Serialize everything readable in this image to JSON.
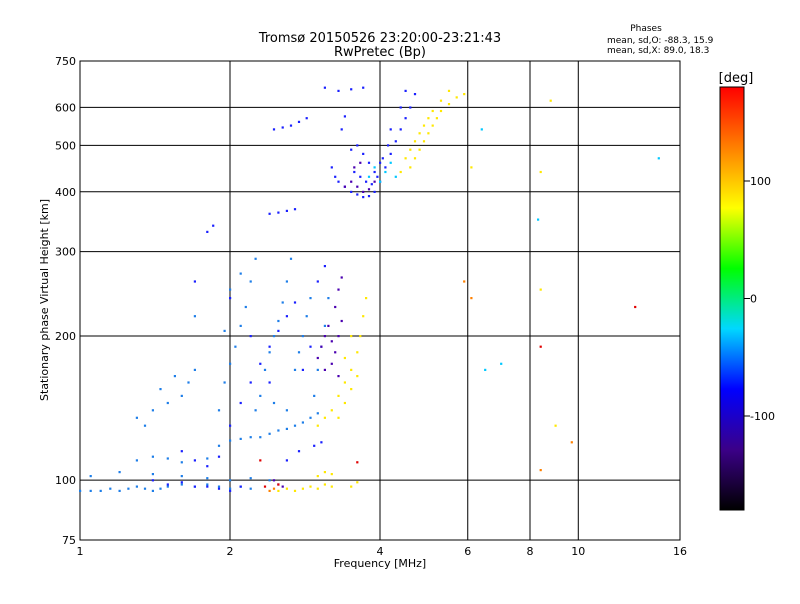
{
  "chart_data": {
    "type": "scatter",
    "title": "Tromsø 20150526 23:20:00-23:21:43",
    "subtitle": "RwPretec (Bp)",
    "xlabel": "Frequency [MHz]",
    "ylabel": "Stationary phase Virtual Height [km]",
    "x_scale": "log",
    "y_scale": "log",
    "xlim": [
      1,
      16
    ],
    "ylim": [
      75,
      750
    ],
    "x_ticks": [
      1,
      2,
      4,
      6,
      8,
      10,
      16
    ],
    "x_tick_labels": [
      "1",
      "2",
      "4",
      "6",
      "8",
      "10",
      "16"
    ],
    "y_ticks": [
      75,
      100,
      200,
      300,
      400,
      500,
      600,
      750
    ],
    "y_tick_labels": [
      "75",
      "100",
      "200",
      "300",
      "400",
      "500",
      "600",
      "750"
    ],
    "grid": true,
    "phase_stats": {
      "title": "Phases",
      "o_line": "mean, sd,O: -88.3, 15.9",
      "x_line": "mean, sd,X:  89.0, 18.3"
    },
    "colorbar": {
      "label": "[deg]",
      "ticks": [
        100,
        0,
        -100
      ],
      "tick_labels": [
        "100",
        "0",
        "-100"
      ],
      "range": [
        -180,
        180
      ],
      "colors": [
        "#000000",
        "#3b0088",
        "#0000ff",
        "#00d8ff",
        "#00ff00",
        "#ffff00",
        "#ff8000",
        "#ff0000"
      ]
    },
    "point_colors": {
      "violet": "#4a00b0",
      "blue": "#1a20ff",
      "light_blue": "#1e7ee8",
      "cyan": "#00c8ff",
      "yellow": "#ffe800",
      "orange": "#ff8000",
      "red": "#e00000"
    },
    "series": [
      {
        "color_key": "light_blue",
        "points": [
          [
            1.0,
            95
          ],
          [
            1.05,
            95
          ],
          [
            1.1,
            95
          ],
          [
            1.15,
            96
          ],
          [
            1.2,
            95
          ],
          [
            1.25,
            96
          ],
          [
            1.3,
            97
          ],
          [
            1.35,
            96
          ],
          [
            1.4,
            95
          ],
          [
            1.45,
            96
          ],
          [
            1.5,
            97
          ],
          [
            1.6,
            98
          ],
          [
            1.7,
            97
          ],
          [
            1.8,
            98
          ],
          [
            1.9,
            97
          ],
          [
            2.0,
            96
          ],
          [
            2.1,
            97
          ],
          [
            2.2,
            96
          ],
          [
            1.05,
            102
          ],
          [
            1.2,
            104
          ],
          [
            1.4,
            103
          ],
          [
            1.6,
            102
          ],
          [
            1.8,
            101
          ],
          [
            2.0,
            100
          ],
          [
            2.2,
            101
          ],
          [
            2.4,
            100
          ],
          [
            1.3,
            110
          ],
          [
            1.4,
            112
          ],
          [
            1.5,
            111
          ],
          [
            1.6,
            109
          ],
          [
            1.8,
            111
          ],
          [
            1.9,
            118
          ],
          [
            2.0,
            121
          ],
          [
            2.1,
            122
          ],
          [
            2.2,
            123
          ],
          [
            2.3,
            123
          ],
          [
            2.4,
            125
          ],
          [
            2.5,
            127
          ],
          [
            2.6,
            128
          ],
          [
            2.7,
            130
          ],
          [
            2.8,
            132
          ],
          [
            2.9,
            135
          ],
          [
            3.0,
            138
          ],
          [
            1.3,
            135
          ],
          [
            1.4,
            140
          ],
          [
            1.5,
            145
          ],
          [
            1.6,
            150
          ],
          [
            1.65,
            160
          ],
          [
            1.7,
            170
          ],
          [
            1.55,
            165
          ],
          [
            1.45,
            155
          ],
          [
            1.35,
            130
          ],
          [
            1.9,
            140
          ],
          [
            1.95,
            160
          ],
          [
            2.0,
            175
          ],
          [
            2.05,
            190
          ],
          [
            2.1,
            210
          ],
          [
            2.15,
            230
          ],
          [
            2.2,
            260
          ],
          [
            2.25,
            290
          ],
          [
            2.3,
            150
          ],
          [
            2.35,
            170
          ],
          [
            2.4,
            185
          ],
          [
            2.45,
            200
          ],
          [
            2.5,
            215
          ],
          [
            2.55,
            235
          ],
          [
            2.6,
            260
          ],
          [
            2.65,
            290
          ],
          [
            2.7,
            170
          ],
          [
            2.75,
            185
          ],
          [
            2.8,
            200
          ],
          [
            2.85,
            220
          ],
          [
            2.9,
            240
          ],
          [
            2.95,
            150
          ],
          [
            3.0,
            170
          ],
          [
            3.05,
            190
          ],
          [
            3.1,
            210
          ],
          [
            3.15,
            240
          ],
          [
            1.7,
            220
          ],
          [
            2.0,
            250
          ],
          [
            2.1,
            270
          ],
          [
            1.95,
            205
          ],
          [
            2.25,
            140
          ],
          [
            2.45,
            145
          ],
          [
            2.6,
            140
          ]
        ]
      },
      {
        "color_key": "blue",
        "points": [
          [
            1.4,
            100
          ],
          [
            1.5,
            98
          ],
          [
            1.6,
            99
          ],
          [
            1.7,
            97
          ],
          [
            1.8,
            97
          ],
          [
            1.9,
            96
          ],
          [
            2.0,
            95
          ],
          [
            2.1,
            97
          ],
          [
            1.6,
            115
          ],
          [
            1.7,
            110
          ],
          [
            1.8,
            107
          ],
          [
            1.9,
            112
          ],
          [
            2.0,
            130
          ],
          [
            2.1,
            145
          ],
          [
            2.2,
            160
          ],
          [
            2.3,
            175
          ],
          [
            2.4,
            190
          ],
          [
            2.5,
            205
          ],
          [
            2.6,
            220
          ],
          [
            2.7,
            235
          ],
          [
            1.7,
            260
          ],
          [
            2.0,
            240
          ],
          [
            2.2,
            200
          ],
          [
            2.4,
            160
          ],
          [
            2.8,
            170
          ],
          [
            2.9,
            190
          ],
          [
            3.0,
            260
          ],
          [
            3.1,
            280
          ],
          [
            1.8,
            330
          ],
          [
            1.85,
            340
          ],
          [
            2.4,
            360
          ],
          [
            2.5,
            362
          ],
          [
            2.6,
            365
          ],
          [
            2.7,
            368
          ],
          [
            2.45,
            540
          ],
          [
            2.55,
            545
          ],
          [
            2.65,
            550
          ],
          [
            2.75,
            560
          ],
          [
            2.85,
            570
          ],
          [
            3.1,
            660
          ],
          [
            3.3,
            650
          ],
          [
            3.5,
            655
          ],
          [
            3.7,
            660
          ],
          [
            3.4,
            575
          ],
          [
            3.35,
            540
          ],
          [
            3.2,
            450
          ],
          [
            3.25,
            430
          ],
          [
            3.3,
            420
          ],
          [
            3.4,
            410
          ],
          [
            3.5,
            400
          ],
          [
            3.6,
            395
          ],
          [
            3.7,
            390
          ],
          [
            3.8,
            392
          ],
          [
            3.9,
            400
          ],
          [
            4.0,
            420
          ],
          [
            4.1,
            450
          ],
          [
            4.2,
            480
          ],
          [
            4.3,
            510
          ],
          [
            4.4,
            540
          ],
          [
            4.5,
            570
          ],
          [
            4.6,
            600
          ],
          [
            4.7,
            640
          ],
          [
            3.5,
            490
          ],
          [
            3.6,
            500
          ],
          [
            3.7,
            480
          ],
          [
            3.8,
            460
          ],
          [
            3.9,
            440
          ],
          [
            4.0,
            460
          ],
          [
            4.2,
            540
          ],
          [
            4.4,
            600
          ],
          [
            4.5,
            650
          ],
          [
            3.55,
            440
          ],
          [
            3.65,
            430
          ],
          [
            3.75,
            420
          ],
          [
            3.85,
            415
          ],
          [
            3.95,
            430
          ],
          [
            4.05,
            470
          ],
          [
            4.15,
            500
          ],
          [
            2.6,
            110
          ],
          [
            2.75,
            115
          ],
          [
            2.95,
            118
          ],
          [
            3.05,
            120
          ]
        ]
      },
      {
        "color_key": "violet",
        "points": [
          [
            3.0,
            180
          ],
          [
            3.05,
            190
          ],
          [
            3.1,
            200
          ],
          [
            3.15,
            210
          ],
          [
            3.2,
            195
          ],
          [
            3.25,
            185
          ],
          [
            3.3,
            200
          ],
          [
            3.35,
            215
          ],
          [
            3.1,
            170
          ],
          [
            3.2,
            175
          ],
          [
            3.3,
            165
          ],
          [
            3.25,
            230
          ],
          [
            3.3,
            250
          ],
          [
            3.35,
            265
          ],
          [
            3.4,
            410
          ],
          [
            3.5,
            420
          ],
          [
            3.6,
            410
          ],
          [
            3.7,
            400
          ],
          [
            3.8,
            405
          ],
          [
            3.9,
            420
          ],
          [
            3.55,
            450
          ],
          [
            3.65,
            460
          ],
          [
            2.45,
            100
          ],
          [
            2.5,
            98
          ],
          [
            2.55,
            97
          ]
        ]
      },
      {
        "color_key": "cyan",
        "points": [
          [
            3.8,
            430
          ],
          [
            3.9,
            450
          ],
          [
            4.0,
            420
          ],
          [
            4.1,
            440
          ],
          [
            4.2,
            460
          ],
          [
            4.3,
            430
          ],
          [
            6.4,
            540
          ],
          [
            7.0,
            175
          ],
          [
            6.5,
            170
          ],
          [
            14.5,
            470
          ],
          [
            8.3,
            350
          ]
        ]
      },
      {
        "color_key": "yellow",
        "points": [
          [
            2.5,
            95
          ],
          [
            2.6,
            96
          ],
          [
            2.7,
            95
          ],
          [
            2.8,
            96
          ],
          [
            2.9,
            97
          ],
          [
            3.0,
            96
          ],
          [
            3.1,
            98
          ],
          [
            3.2,
            97
          ],
          [
            3.0,
            102
          ],
          [
            3.1,
            104
          ],
          [
            3.2,
            103
          ],
          [
            3.5,
            97
          ],
          [
            3.6,
            99
          ],
          [
            3.0,
            130
          ],
          [
            3.1,
            135
          ],
          [
            3.2,
            140
          ],
          [
            3.3,
            150
          ],
          [
            3.4,
            160
          ],
          [
            3.5,
            170
          ],
          [
            3.6,
            185
          ],
          [
            3.65,
            200
          ],
          [
            3.7,
            220
          ],
          [
            3.75,
            240
          ],
          [
            3.3,
            135
          ],
          [
            3.4,
            145
          ],
          [
            3.5,
            155
          ],
          [
            3.6,
            165
          ],
          [
            3.4,
            180
          ],
          [
            3.5,
            200
          ],
          [
            4.4,
            440
          ],
          [
            4.6,
            450
          ],
          [
            4.7,
            470
          ],
          [
            4.8,
            490
          ],
          [
            4.9,
            510
          ],
          [
            5.0,
            530
          ],
          [
            5.1,
            550
          ],
          [
            5.2,
            570
          ],
          [
            5.3,
            590
          ],
          [
            5.5,
            610
          ],
          [
            5.7,
            630
          ],
          [
            5.9,
            640
          ],
          [
            4.5,
            470
          ],
          [
            4.6,
            490
          ],
          [
            4.7,
            510
          ],
          [
            4.8,
            530
          ],
          [
            4.9,
            550
          ],
          [
            5.0,
            570
          ],
          [
            5.1,
            590
          ],
          [
            5.3,
            620
          ],
          [
            5.5,
            650
          ],
          [
            8.4,
            440
          ],
          [
            9.0,
            130
          ],
          [
            8.8,
            620
          ],
          [
            6.1,
            450
          ],
          [
            8.4,
            250
          ]
        ]
      },
      {
        "color_key": "orange",
        "points": [
          [
            2.4,
            95
          ],
          [
            2.45,
            96
          ],
          [
            5.9,
            260
          ],
          [
            6.1,
            240
          ],
          [
            9.7,
            120
          ],
          [
            8.4,
            105
          ]
        ]
      },
      {
        "color_key": "red",
        "points": [
          [
            2.35,
            97
          ],
          [
            2.5,
            98
          ],
          [
            8.4,
            190
          ],
          [
            13.0,
            230
          ],
          [
            3.6,
            109
          ],
          [
            2.3,
            110
          ]
        ]
      }
    ]
  }
}
